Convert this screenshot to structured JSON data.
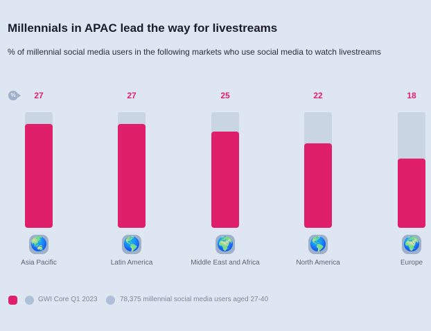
{
  "header": {
    "title": "Millennials in APAC lead the way for livestreams",
    "subtitle": "% of millennial social media users in the following markets who use social media to watch livestreams",
    "unit_badge": "%"
  },
  "chart_data": {
    "type": "bar",
    "title": "Millennials in APAC lead the way for livestreams",
    "ylabel": "%",
    "ylim": [
      0,
      30
    ],
    "categories": [
      "Asia Pacific",
      "Latin America",
      "Middle East and Africa",
      "North America",
      "Europe"
    ],
    "values": [
      27,
      27,
      25,
      22,
      18
    ]
  },
  "footer": {
    "source": "GWI Core Q1 2023",
    "sample": "78,375 millennial social media users aged 27-40"
  },
  "colors": {
    "bar": "#e01f6a",
    "track": "#c9d5e3"
  }
}
